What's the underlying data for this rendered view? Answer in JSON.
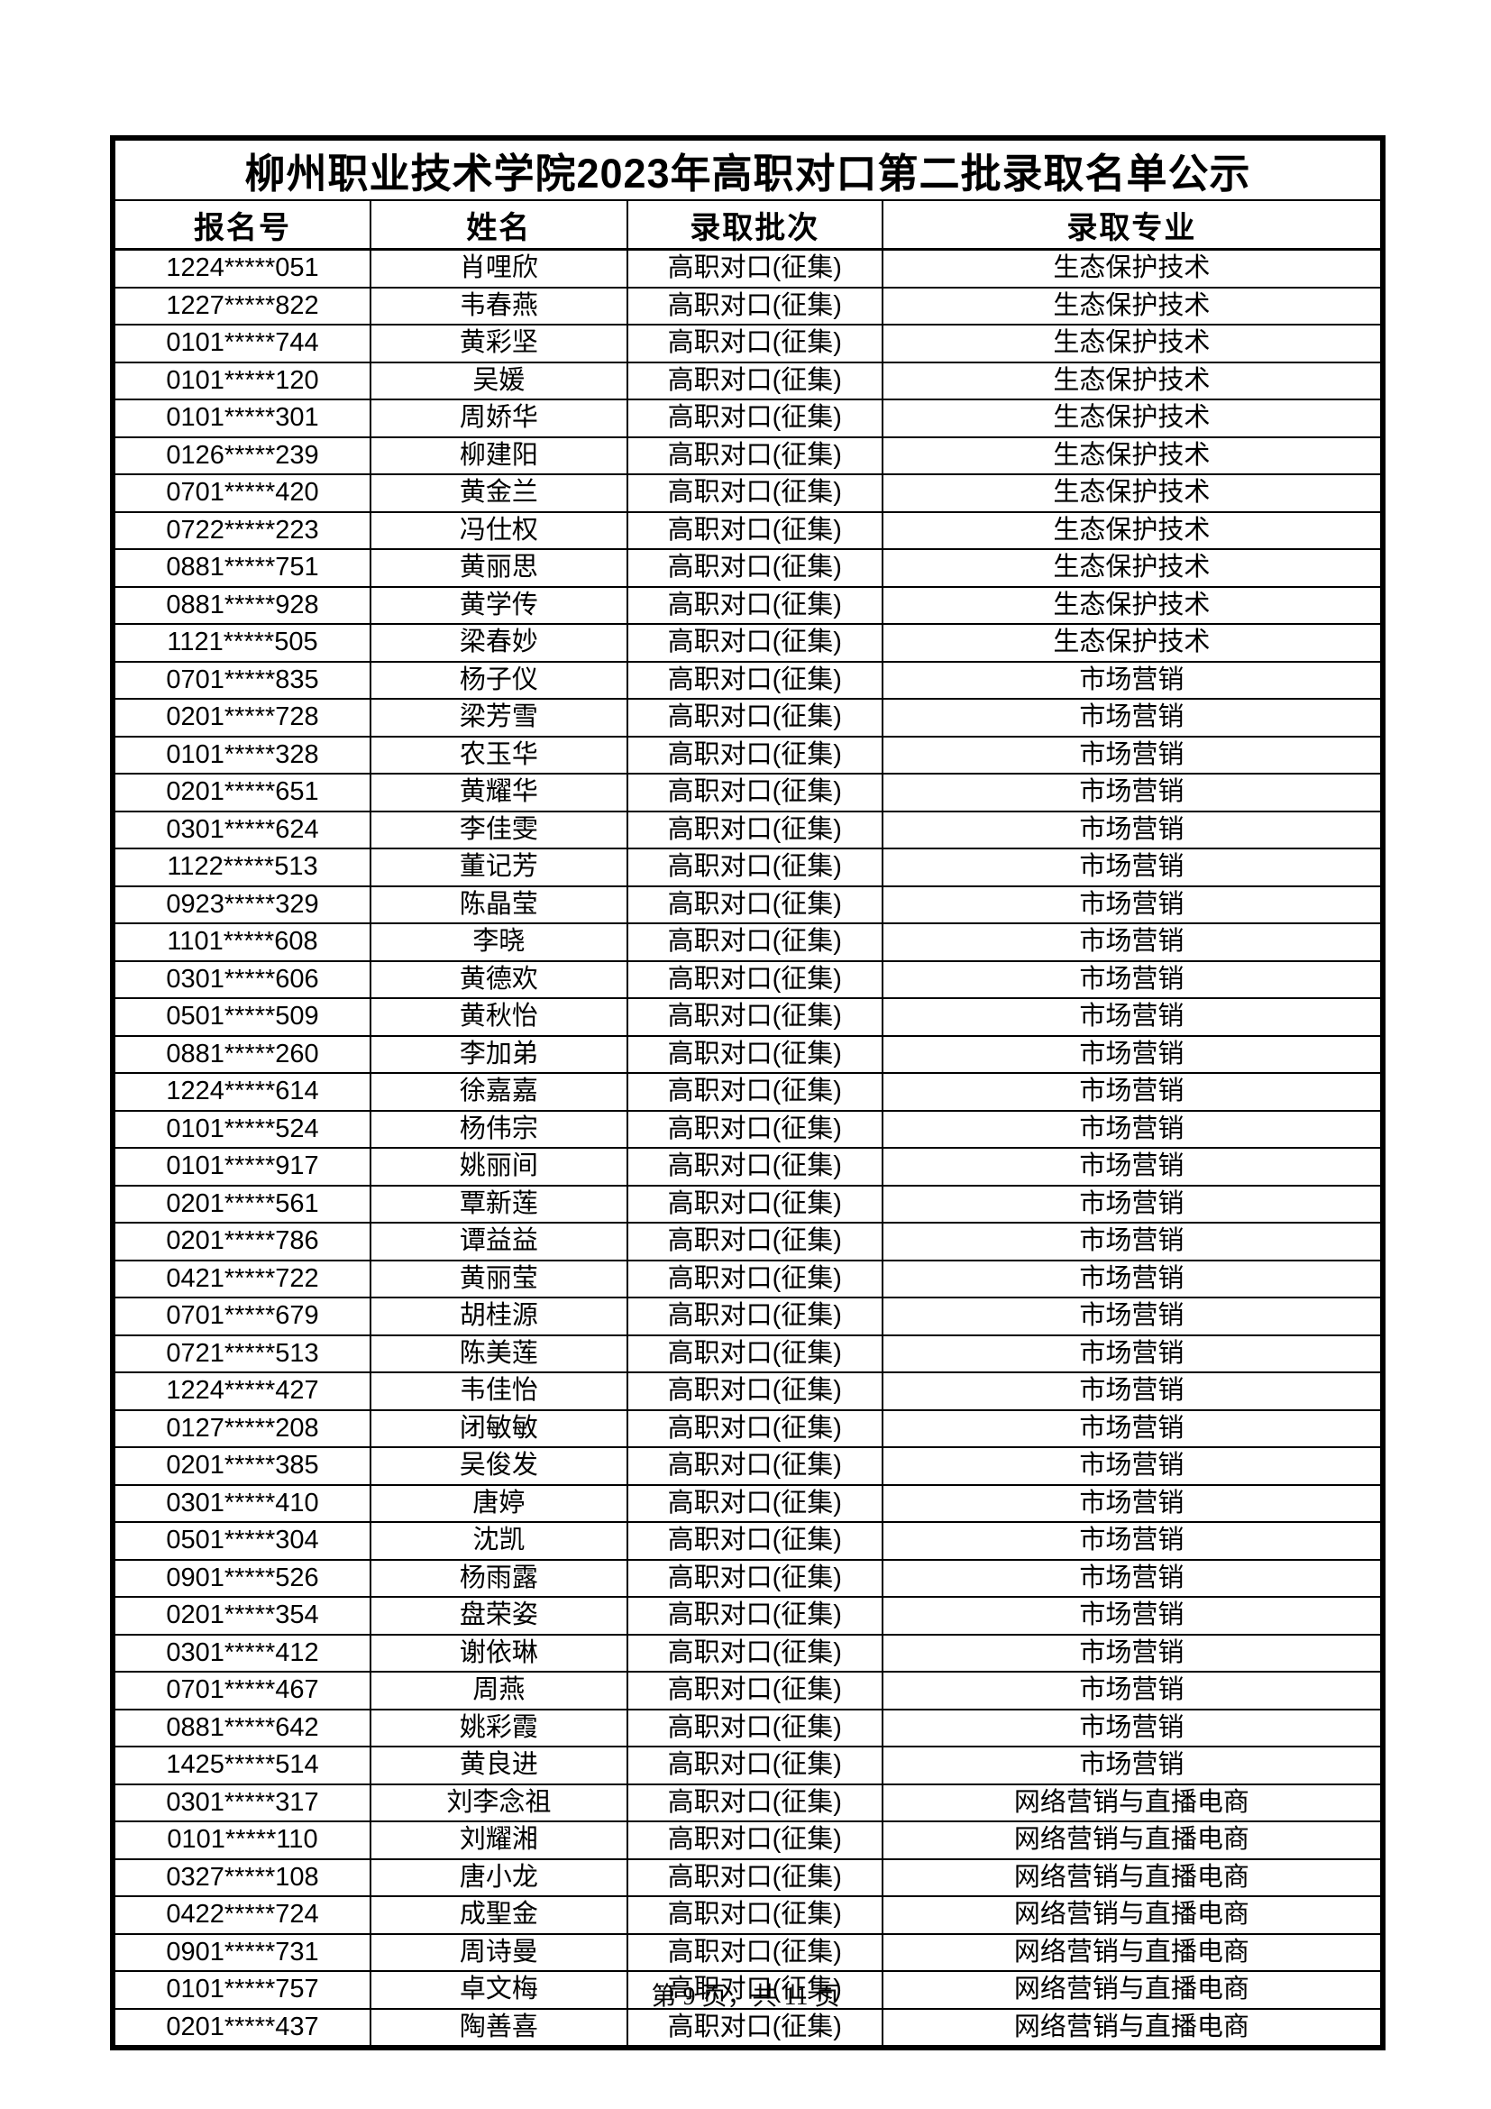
{
  "title": "柳州职业技术学院2023年高职对口第二批录取名单公示",
  "columns": [
    "报名号",
    "姓名",
    "录取批次",
    "录取专业"
  ],
  "rows": [
    [
      "1224*****051",
      "肖哩欣",
      "高职对口(征集)",
      "生态保护技术"
    ],
    [
      "1227*****822",
      "韦春燕",
      "高职对口(征集)",
      "生态保护技术"
    ],
    [
      "0101*****744",
      "黄彩坚",
      "高职对口(征集)",
      "生态保护技术"
    ],
    [
      "0101*****120",
      "吴媛",
      "高职对口(征集)",
      "生态保护技术"
    ],
    [
      "0101*****301",
      "周娇华",
      "高职对口(征集)",
      "生态保护技术"
    ],
    [
      "0126*****239",
      "柳建阳",
      "高职对口(征集)",
      "生态保护技术"
    ],
    [
      "0701*****420",
      "黄金兰",
      "高职对口(征集)",
      "生态保护技术"
    ],
    [
      "0722*****223",
      "冯仕权",
      "高职对口(征集)",
      "生态保护技术"
    ],
    [
      "0881*****751",
      "黄丽思",
      "高职对口(征集)",
      "生态保护技术"
    ],
    [
      "0881*****928",
      "黄学传",
      "高职对口(征集)",
      "生态保护技术"
    ],
    [
      "1121*****505",
      "梁春妙",
      "高职对口(征集)",
      "生态保护技术"
    ],
    [
      "0701*****835",
      "杨子仪",
      "高职对口(征集)",
      "市场营销"
    ],
    [
      "0201*****728",
      "梁芳雪",
      "高职对口(征集)",
      "市场营销"
    ],
    [
      "0101*****328",
      "农玉华",
      "高职对口(征集)",
      "市场营销"
    ],
    [
      "0201*****651",
      "黄耀华",
      "高职对口(征集)",
      "市场营销"
    ],
    [
      "0301*****624",
      "李佳雯",
      "高职对口(征集)",
      "市场营销"
    ],
    [
      "1122*****513",
      "董记芳",
      "高职对口(征集)",
      "市场营销"
    ],
    [
      "0923*****329",
      "陈晶莹",
      "高职对口(征集)",
      "市场营销"
    ],
    [
      "1101*****608",
      "李晓",
      "高职对口(征集)",
      "市场营销"
    ],
    [
      "0301*****606",
      "黄德欢",
      "高职对口(征集)",
      "市场营销"
    ],
    [
      "0501*****509",
      "黄秋怡",
      "高职对口(征集)",
      "市场营销"
    ],
    [
      "0881*****260",
      "李加弟",
      "高职对口(征集)",
      "市场营销"
    ],
    [
      "1224*****614",
      "徐嘉嘉",
      "高职对口(征集)",
      "市场营销"
    ],
    [
      "0101*****524",
      "杨伟宗",
      "高职对口(征集)",
      "市场营销"
    ],
    [
      "0101*****917",
      "姚丽间",
      "高职对口(征集)",
      "市场营销"
    ],
    [
      "0201*****561",
      "覃新莲",
      "高职对口(征集)",
      "市场营销"
    ],
    [
      "0201*****786",
      "谭益益",
      "高职对口(征集)",
      "市场营销"
    ],
    [
      "0421*****722",
      "黄丽莹",
      "高职对口(征集)",
      "市场营销"
    ],
    [
      "0701*****679",
      "胡桂源",
      "高职对口(征集)",
      "市场营销"
    ],
    [
      "0721*****513",
      "陈美莲",
      "高职对口(征集)",
      "市场营销"
    ],
    [
      "1224*****427",
      "韦佳怡",
      "高职对口(征集)",
      "市场营销"
    ],
    [
      "0127*****208",
      "闭敏敏",
      "高职对口(征集)",
      "市场营销"
    ],
    [
      "0201*****385",
      "吴俊发",
      "高职对口(征集)",
      "市场营销"
    ],
    [
      "0301*****410",
      "唐婷",
      "高职对口(征集)",
      "市场营销"
    ],
    [
      "0501*****304",
      "沈凯",
      "高职对口(征集)",
      "市场营销"
    ],
    [
      "0901*****526",
      "杨雨露",
      "高职对口(征集)",
      "市场营销"
    ],
    [
      "0201*****354",
      "盘荣姿",
      "高职对口(征集)",
      "市场营销"
    ],
    [
      "0301*****412",
      "谢依琳",
      "高职对口(征集)",
      "市场营销"
    ],
    [
      "0701*****467",
      "周燕",
      "高职对口(征集)",
      "市场营销"
    ],
    [
      "0881*****642",
      "姚彩霞",
      "高职对口(征集)",
      "市场营销"
    ],
    [
      "1425*****514",
      "黄良进",
      "高职对口(征集)",
      "市场营销"
    ],
    [
      "0301*****317",
      "刘李念祖",
      "高职对口(征集)",
      "网络营销与直播电商"
    ],
    [
      "0101*****110",
      "刘耀湘",
      "高职对口(征集)",
      "网络营销与直播电商"
    ],
    [
      "0327*****108",
      "唐小龙",
      "高职对口(征集)",
      "网络营销与直播电商"
    ],
    [
      "0422*****724",
      "成聖金",
      "高职对口(征集)",
      "网络营销与直播电商"
    ],
    [
      "0901*****731",
      "周诗曼",
      "高职对口(征集)",
      "网络营销与直播电商"
    ],
    [
      "0101*****757",
      "卓文梅",
      "高职对口(征集)",
      "网络营销与直播电商"
    ],
    [
      "0201*****437",
      "陶善喜",
      "高职对口(征集)",
      "网络营销与直播电商"
    ]
  ],
  "footer": {
    "text": "第 9 页，共 11 页"
  },
  "colors": {
    "text": "#000000",
    "background": "#ffffff",
    "border": "#000000"
  }
}
